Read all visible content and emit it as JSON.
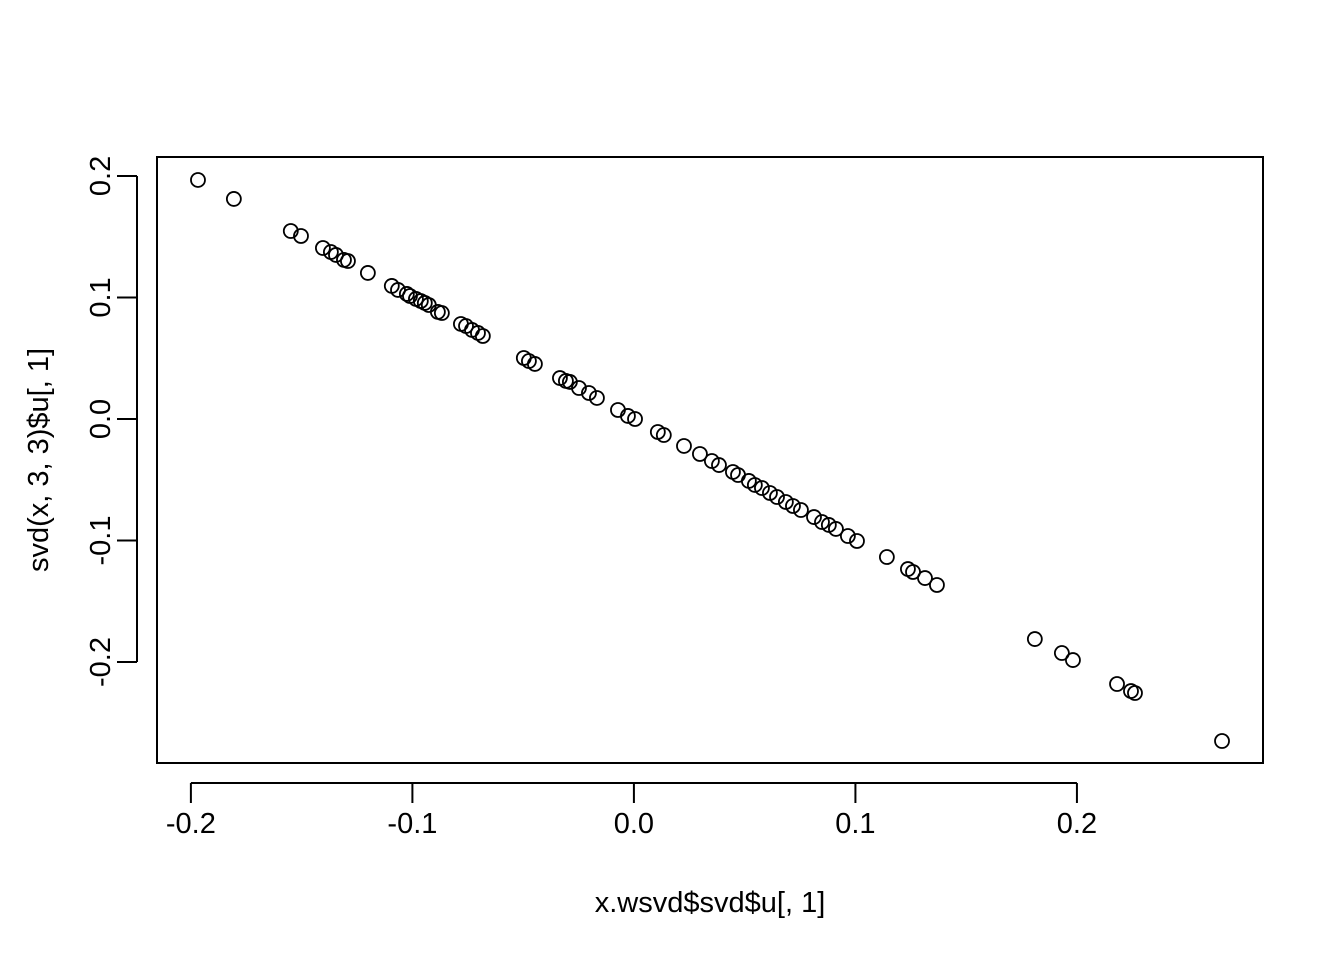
{
  "chart_data": {
    "type": "scatter",
    "xlabel": "x.wsvd$svd$u[, 1]",
    "ylabel": "svd(x, 3, 3)$u[, 1]",
    "color": "#000000",
    "x": [
      -0.1968,
      -0.1806,
      -0.1549,
      -0.1503,
      -0.1404,
      -0.1368,
      -0.1345,
      -0.1309,
      -0.1291,
      -0.1201,
      -0.1093,
      -0.1065,
      -0.1025,
      -0.1011,
      -0.0984,
      -0.0962,
      -0.0944,
      -0.0926,
      -0.0885,
      -0.0867,
      -0.0781,
      -0.0758,
      -0.0731,
      -0.0704,
      -0.0682,
      -0.0497,
      -0.0474,
      -0.0447,
      -0.0334,
      -0.0307,
      -0.0289,
      -0.0248,
      -0.0203,
      -0.0167,
      -0.0072,
      -0.0027,
      0.0005,
      0.0108,
      0.0135,
      0.0226,
      0.0298,
      0.0352,
      0.0384,
      0.0447,
      0.047,
      0.0519,
      0.0546,
      0.0578,
      0.0614,
      0.0646,
      0.0686,
      0.0718,
      0.0754,
      0.0813,
      0.0849,
      0.088,
      0.0912,
      0.0966,
      0.1007,
      0.1142,
      0.1237,
      0.126,
      0.1314,
      0.1368,
      0.181,
      0.1932,
      0.1982,
      0.2181,
      0.2244,
      0.2262,
      0.2655
    ],
    "values": [
      0.1967,
      0.1811,
      0.1547,
      0.1506,
      0.1407,
      0.1374,
      0.135,
      0.1309,
      0.13,
      0.1202,
      0.1095,
      0.1062,
      0.1029,
      0.1012,
      0.0988,
      0.0971,
      0.0955,
      0.0938,
      0.0881,
      0.0872,
      0.0782,
      0.0765,
      0.0733,
      0.0708,
      0.0683,
      0.0502,
      0.0477,
      0.0453,
      0.0337,
      0.0313,
      0.0305,
      0.0255,
      0.0214,
      0.0173,
      0.0074,
      0.0025,
      0,
      -0.0107,
      -0.0132,
      -0.0222,
      -0.0288,
      -0.0346,
      -0.0379,
      -0.0436,
      -0.0461,
      -0.051,
      -0.0543,
      -0.0568,
      -0.0609,
      -0.0642,
      -0.0683,
      -0.0716,
      -0.0749,
      -0.0807,
      -0.0848,
      -0.0872,
      -0.0905,
      -0.0963,
      -0.1004,
      -0.1136,
      -0.1235,
      -0.1259,
      -0.1309,
      -0.1366,
      -0.1811,
      -0.1926,
      -0.1984,
      -0.2181,
      -0.2239,
      -0.2255,
      -0.265
    ],
    "xlim": [
      -0.2153,
      0.284
    ],
    "ylim": [
      -0.2831,
      0.2156
    ],
    "xticks": [
      -0.2,
      -0.1,
      {
        "value": 0,
        "label": "0.0"
      },
      0.1,
      0.2
    ],
    "yticks": [
      -0.2,
      -0.1,
      {
        "value": 0,
        "label": "0.0"
      },
      0.1,
      0.2
    ]
  }
}
